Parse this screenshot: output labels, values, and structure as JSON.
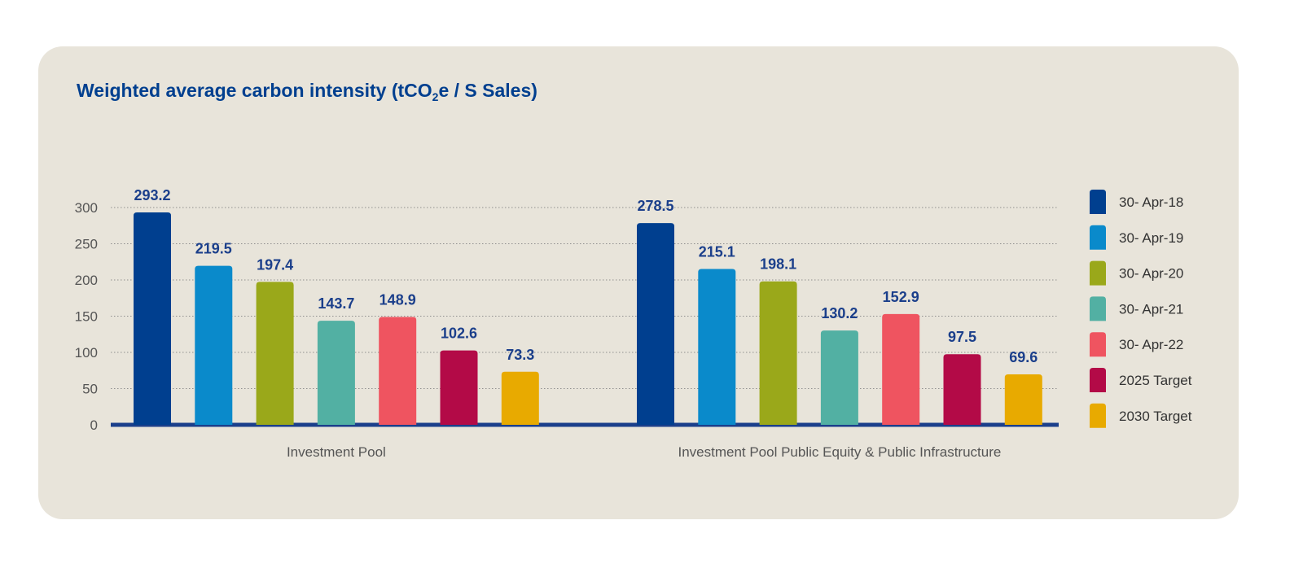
{
  "title": {
    "prefix": "Weighted average carbon intensity (tCO",
    "sub": "2",
    "suffix": "e / S Sales)"
  },
  "chart_data": {
    "type": "bar",
    "categories": [
      "Investment Pool",
      "Investment Pool Public Equity & Public Infrastructure"
    ],
    "series": [
      {
        "name": "30- Apr-18",
        "color": "#003f8f",
        "values": [
          293.2,
          278.5
        ]
      },
      {
        "name": "30- Apr-19",
        "color": "#0a8acb",
        "values": [
          219.5,
          215.1
        ]
      },
      {
        "name": "30- Apr-20",
        "color": "#9aa81a",
        "values": [
          197.4,
          198.1
        ]
      },
      {
        "name": "30- Apr-21",
        "color": "#52b0a3",
        "values": [
          143.7,
          130.2
        ]
      },
      {
        "name": "30- Apr-22",
        "color": "#ef5460",
        "values": [
          148.9,
          152.9
        ]
      },
      {
        "name": "2025 Target",
        "color": "#b30a47",
        "values": [
          102.6,
          97.5
        ]
      },
      {
        "name": "2030 Target",
        "color": "#e8aa00",
        "values": [
          73.3,
          69.6
        ]
      }
    ],
    "yticks": [
      0,
      50,
      100,
      150,
      200,
      250,
      300
    ],
    "ylim": [
      0,
      300
    ],
    "grid": true,
    "legend": "right"
  }
}
